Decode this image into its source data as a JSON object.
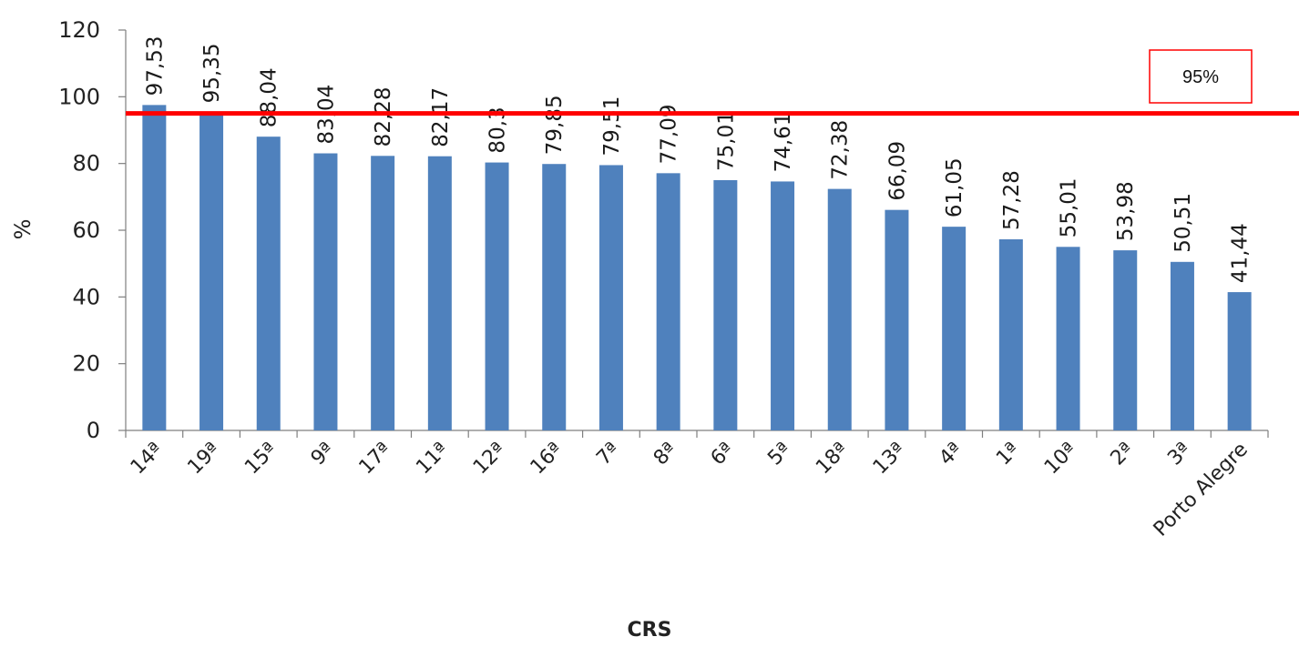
{
  "chart_data": {
    "type": "bar",
    "categories": [
      "14ª",
      "19ª",
      "15ª",
      "9ª",
      "17ª",
      "11ª",
      "12ª",
      "16ª",
      "7ª",
      "8ª",
      "6ª",
      "5ª",
      "18ª",
      "13ª",
      "4ª",
      "1ª",
      "10ª",
      "2ª",
      "3ª",
      "Porto Alegre"
    ],
    "values": [
      97.53,
      95.35,
      88.04,
      83.04,
      82.28,
      82.17,
      80.3,
      79.85,
      79.51,
      77.09,
      75.01,
      74.61,
      72.38,
      66.09,
      61.05,
      57.28,
      55.01,
      53.98,
      50.51,
      41.44
    ],
    "data_labels": [
      "97,53",
      "95,35",
      "88,04",
      "83,04",
      "82,28",
      "82,17",
      "80,3",
      "79,85",
      "79,51",
      "77,09",
      "75,01",
      "74,61",
      "72,38",
      "66,09",
      "61,05",
      "57,28",
      "55,01",
      "53,98",
      "50,51",
      "41,44"
    ],
    "xlabel": "CRS",
    "ylabel": "%",
    "ylim": [
      0,
      120
    ],
    "yticks": [
      0,
      20,
      40,
      60,
      80,
      100,
      120
    ],
    "grid": false,
    "legend": "none",
    "bar_color": "#4f81bd",
    "reference_line": {
      "value": 95,
      "label": "95%",
      "color": "#ff0000"
    }
  }
}
